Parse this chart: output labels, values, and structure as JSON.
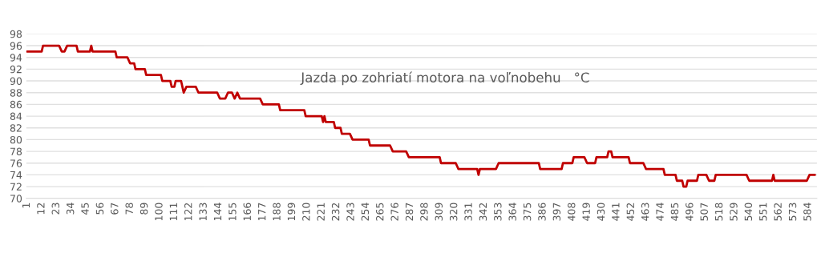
{
  "chart_data": {
    "type": "line",
    "title": "Jazda po zohriatí motora na voľnobehu   °C",
    "x": [
      1,
      12,
      13,
      25,
      27,
      29,
      31,
      38,
      39,
      48,
      49,
      50,
      67,
      68,
      76,
      78,
      81,
      82,
      89,
      90,
      101,
      102,
      108,
      109,
      111,
      112,
      116,
      117,
      118,
      120,
      127,
      129,
      143,
      145,
      149,
      151,
      154,
      156,
      158,
      160,
      175,
      177,
      189,
      190,
      208,
      209,
      221,
      222,
      223,
      224,
      230,
      231,
      235,
      236,
      242,
      244,
      256,
      257,
      272,
      274,
      284,
      286,
      309,
      310,
      321,
      323,
      337,
      338,
      339,
      351,
      353,
      383,
      384,
      400,
      401,
      408,
      409,
      417,
      419,
      425,
      426,
      434,
      435,
      437,
      438,
      450,
      451,
      461,
      463,
      476,
      477,
      485,
      486,
      490,
      491,
      493,
      494,
      501,
      502,
      508,
      510,
      514,
      515,
      538,
      540,
      557,
      558,
      559,
      583,
      585,
      589
    ],
    "series": [
      {
        "color": "#c00000",
        "values": [
          95,
          95,
          96,
          96,
          95,
          95,
          96,
          96,
          95,
          95,
          96,
          95,
          95,
          94,
          94,
          93,
          93,
          92,
          92,
          91,
          91,
          90,
          90,
          89,
          89,
          90,
          90,
          89,
          88,
          89,
          89,
          88,
          88,
          87,
          87,
          88,
          88,
          87,
          88,
          87,
          87,
          86,
          86,
          85,
          85,
          84,
          84,
          83,
          84,
          83,
          83,
          82,
          82,
          81,
          81,
          80,
          80,
          79,
          79,
          78,
          78,
          77,
          77,
          76,
          76,
          75,
          75,
          74,
          75,
          75,
          76,
          76,
          75,
          75,
          76,
          76,
          77,
          77,
          76,
          76,
          77,
          77,
          78,
          78,
          77,
          77,
          76,
          76,
          75,
          75,
          74,
          74,
          73,
          73,
          72,
          72,
          73,
          73,
          74,
          74,
          73,
          73,
          74,
          74,
          73,
          73,
          74,
          73,
          73,
          74,
          74
        ]
      }
    ],
    "xlim": [
      0.5,
      590.5
    ],
    "xticks": [
      1,
      12,
      23,
      34,
      45,
      56,
      67,
      78,
      89,
      100,
      111,
      122,
      133,
      144,
      155,
      166,
      177,
      188,
      199,
      210,
      221,
      232,
      243,
      254,
      265,
      276,
      287,
      298,
      309,
      320,
      331,
      342,
      353,
      364,
      375,
      386,
      397,
      408,
      419,
      430,
      441,
      452,
      463,
      474,
      485,
      496,
      507,
      518,
      529,
      540,
      551,
      562,
      573,
      584
    ],
    "ylim": [
      70,
      98
    ],
    "yticks": [
      70,
      72,
      74,
      76,
      78,
      80,
      82,
      84,
      86,
      88,
      90,
      92,
      94,
      96,
      98
    ],
    "grid": "y",
    "marker": "none",
    "line_style": "solid"
  }
}
